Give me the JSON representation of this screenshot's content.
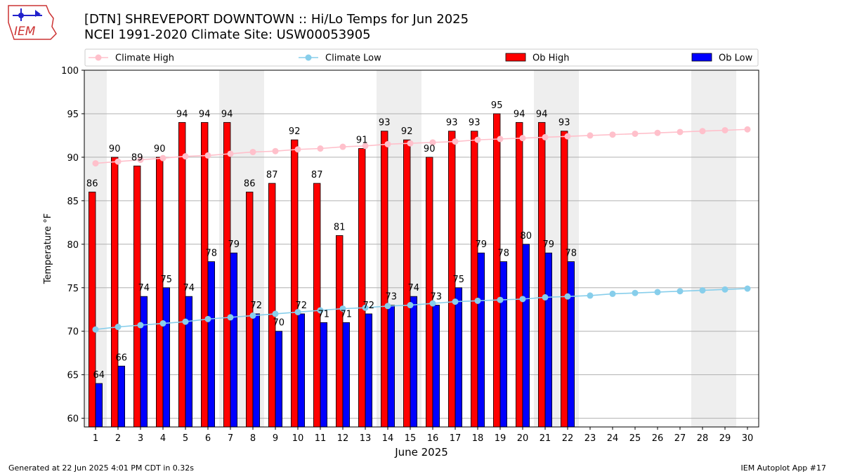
{
  "header": {
    "title_line1": "[DTN] SHREVEPORT DOWNTOWN :: Hi/Lo Temps for Jun 2025",
    "title_line2": "NCEI 1991-2020 Climate Site: USW00053905"
  },
  "logo": {
    "text": "IEM"
  },
  "footer": {
    "left": "Generated at 22 Jun 2025 4:01 PM CDT in 0.32s",
    "right": "IEM Autoplot App #17"
  },
  "chart_data": {
    "type": "bar",
    "xlabel": "June 2025",
    "ylabel": "Temperature °F",
    "ylim": [
      59,
      100
    ],
    "yticks": [
      60,
      65,
      70,
      75,
      80,
      85,
      90,
      95,
      100
    ],
    "days": [
      1,
      2,
      3,
      4,
      5,
      6,
      7,
      8,
      9,
      10,
      11,
      12,
      13,
      14,
      15,
      16,
      17,
      18,
      19,
      20,
      21,
      22,
      23,
      24,
      25,
      26,
      27,
      28,
      29,
      30
    ],
    "weekend_shading": [
      [
        1
      ],
      [
        7,
        8
      ],
      [
        14,
        15
      ],
      [
        21,
        22
      ],
      [
        28,
        29
      ]
    ],
    "grid": "horizontal",
    "legend_position": "top",
    "series": [
      {
        "name": "Climate High",
        "kind": "line",
        "color": "#ffc0cb",
        "values": [
          89.3,
          89.5,
          89.7,
          89.9,
          90.1,
          90.2,
          90.4,
          90.6,
          90.7,
          90.9,
          91.0,
          91.2,
          91.3,
          91.5,
          91.6,
          91.7,
          91.8,
          92.0,
          92.1,
          92.2,
          92.3,
          92.4,
          92.5,
          92.6,
          92.7,
          92.8,
          92.9,
          93.0,
          93.1,
          93.2
        ]
      },
      {
        "name": "Climate Low",
        "kind": "line",
        "color": "#87ceeb",
        "values": [
          70.2,
          70.5,
          70.7,
          70.9,
          71.1,
          71.4,
          71.6,
          71.8,
          72.0,
          72.2,
          72.4,
          72.6,
          72.7,
          72.9,
          73.0,
          73.2,
          73.4,
          73.5,
          73.6,
          73.7,
          73.9,
          74.0,
          74.1,
          74.3,
          74.4,
          74.5,
          74.6,
          74.7,
          74.8,
          74.9
        ]
      },
      {
        "name": "Ob High",
        "kind": "bar",
        "color": "#ff0000",
        "values": [
          86,
          90,
          89,
          90,
          94,
          94,
          94,
          86,
          87,
          92,
          87,
          81,
          91,
          93,
          92,
          90,
          93,
          93,
          95,
          94,
          94,
          93
        ]
      },
      {
        "name": "Ob Low",
        "kind": "bar",
        "color": "#0000ff",
        "values": [
          64,
          66,
          74,
          75,
          74,
          78,
          79,
          72,
          70,
          72,
          71,
          71,
          72,
          73,
          74,
          73,
          75,
          79,
          78,
          80,
          79,
          78
        ]
      }
    ]
  }
}
